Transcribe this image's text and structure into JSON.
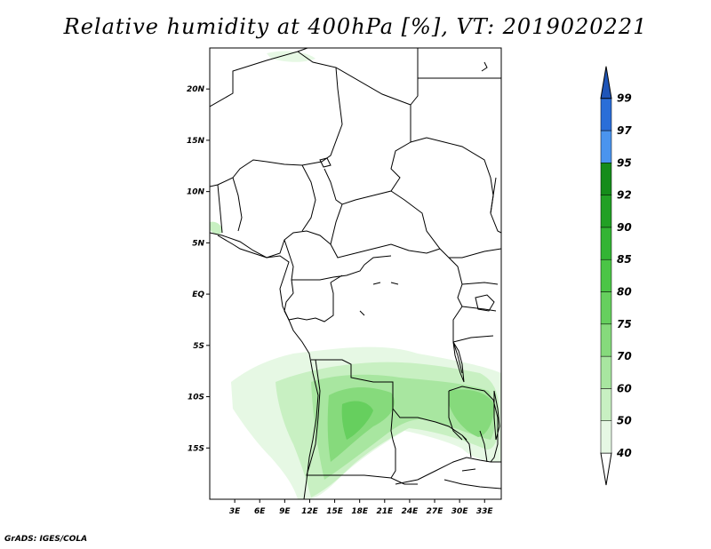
{
  "title": "Relative humidity at 400hPa [%], VT: 2019020221",
  "credit": "GrADS: IGES/COLA",
  "map": {
    "lon_range": [
      0,
      35
    ],
    "lat_range": [
      -20,
      24
    ],
    "lat_ticks": [
      {
        "lat": 20,
        "label": "20N"
      },
      {
        "lat": 15,
        "label": "15N"
      },
      {
        "lat": 10,
        "label": "10N"
      },
      {
        "lat": 5,
        "label": "5N"
      },
      {
        "lat": 0,
        "label": "EQ"
      },
      {
        "lat": -5,
        "label": "5S"
      },
      {
        "lat": -10,
        "label": "10S"
      },
      {
        "lat": -15,
        "label": "15S"
      }
    ],
    "lon_ticks": [
      {
        "lon": 3,
        "label": "3E"
      },
      {
        "lon": 6,
        "label": "6E"
      },
      {
        "lon": 9,
        "label": "9E"
      },
      {
        "lon": 12,
        "label": "12E"
      },
      {
        "lon": 15,
        "label": "15E"
      },
      {
        "lon": 18,
        "label": "18E"
      },
      {
        "lon": 21,
        "label": "21E"
      },
      {
        "lon": 24,
        "label": "24E"
      },
      {
        "lon": 27,
        "label": "27E"
      },
      {
        "lon": 30,
        "label": "30E"
      },
      {
        "lon": 33,
        "label": "33E"
      }
    ]
  },
  "colorbar": {
    "levels": [
      {
        "label": "40",
        "color": "#ffffff"
      },
      {
        "label": "50",
        "color": "#e6f8e4"
      },
      {
        "label": "60",
        "color": "#c8f0c2"
      },
      {
        "label": "70",
        "color": "#a8e6a0"
      },
      {
        "label": "75",
        "color": "#86da7c"
      },
      {
        "label": "80",
        "color": "#66cf5e"
      },
      {
        "label": "85",
        "color": "#4bc546"
      },
      {
        "label": "90",
        "color": "#33b434"
      },
      {
        "label": "92",
        "color": "#22a025"
      },
      {
        "label": "95",
        "color": "#158c1a"
      },
      {
        "label": "97",
        "color": "#4a94ee"
      },
      {
        "label": "99",
        "color": "#2a6ed8"
      }
    ],
    "top_color": "#1f55b8"
  }
}
